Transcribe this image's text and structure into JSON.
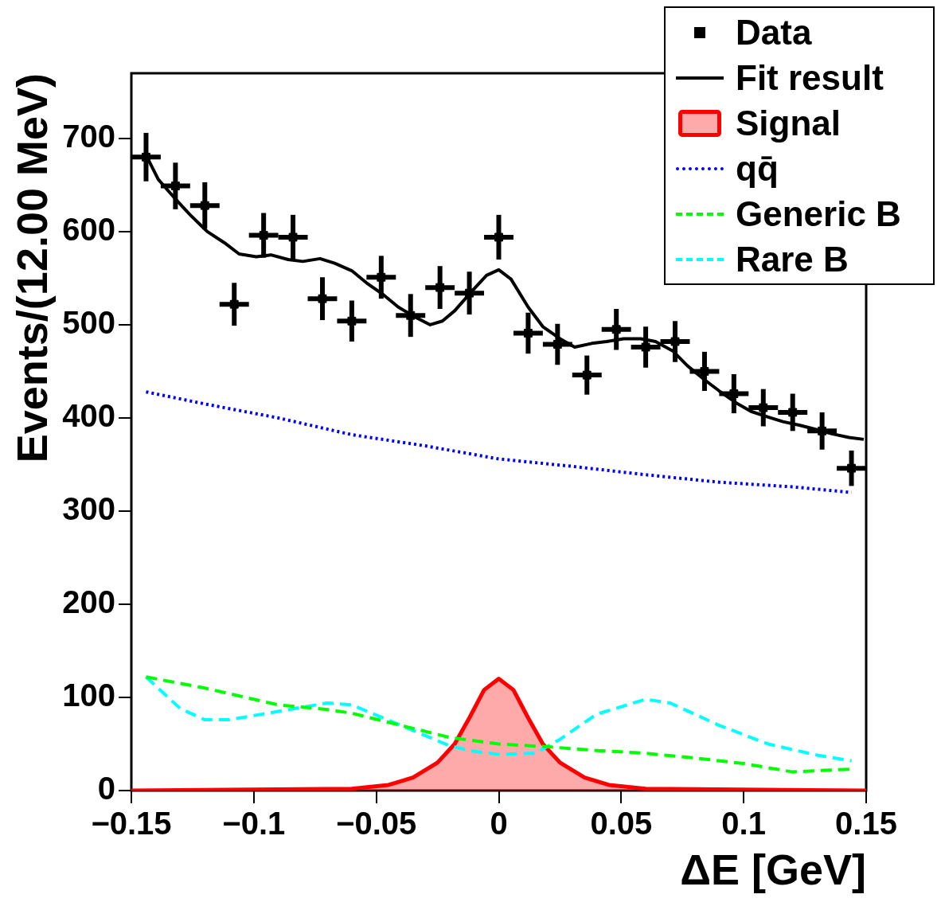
{
  "chart_data": {
    "type": "line",
    "xlabel": "ΔE [GeV]",
    "ylabel": "Events/(12.00 MeV)",
    "xlim": [
      -0.15,
      0.15
    ],
    "ylim": [
      0,
      770
    ],
    "xticks": [
      {
        "value": -0.15,
        "label": "−0.15"
      },
      {
        "value": -0.1,
        "label": "−0.1"
      },
      {
        "value": -0.05,
        "label": "−0.05"
      },
      0,
      0.05,
      0.1,
      0.15
    ],
    "yticks": [
      0,
      100,
      200,
      300,
      400,
      500,
      600,
      700
    ],
    "grid": false,
    "legend": "top right",
    "series": [
      {
        "name": "Data",
        "type": "scatter",
        "marker": "square",
        "color": "#000000",
        "x": [
          -0.144,
          -0.132,
          -0.12,
          -0.108,
          -0.096,
          -0.084,
          -0.072,
          -0.06,
          -0.048,
          -0.036,
          -0.024,
          -0.012,
          0,
          0.012,
          0.024,
          0.036,
          0.048,
          0.06,
          0.072,
          0.084,
          0.096,
          0.108,
          0.12,
          0.132,
          0.144
        ],
        "values": [
          680,
          649,
          628,
          522,
          596,
          594,
          528,
          504,
          551,
          510,
          540,
          534,
          594,
          491,
          479,
          446,
          495,
          476,
          482,
          450,
          426,
          411,
          406,
          386,
          346
        ],
        "errors": [
          26,
          25,
          25,
          23,
          24,
          24,
          23,
          22,
          23,
          23,
          23,
          23,
          24,
          22,
          22,
          21,
          22,
          22,
          22,
          21,
          21,
          20,
          20,
          20,
          19
        ],
        "xerrors": [
          0.006,
          0.006,
          0.006,
          0.006,
          0.006,
          0.006,
          0.006,
          0.006,
          0.006,
          0.006,
          0.006,
          0.006,
          0.006,
          0.006,
          0.006,
          0.006,
          0.006,
          0.006,
          0.006,
          0.006,
          0.006,
          0.006,
          0.006,
          0.006,
          0.006
        ]
      },
      {
        "name": "Fit result",
        "type": "line",
        "line_style": "solid",
        "color": "#000000",
        "x": [
          -0.144,
          -0.139,
          -0.132,
          -0.126,
          -0.119,
          -0.112,
          -0.106,
          -0.099,
          -0.093,
          -0.086,
          -0.08,
          -0.073,
          -0.067,
          -0.06,
          -0.054,
          -0.047,
          -0.041,
          -0.034,
          -0.028,
          -0.023,
          -0.018,
          -0.011,
          -0.005,
          0,
          0.005,
          0.012,
          0.018,
          0.025,
          0.031,
          0.038,
          0.044,
          0.051,
          0.058,
          0.064,
          0.071,
          0.077,
          0.084,
          0.09,
          0.097,
          0.103,
          0.11,
          0.116,
          0.123,
          0.129,
          0.136,
          0.143,
          0.149
        ],
        "values": [
          682,
          656,
          635,
          618,
          600,
          588,
          576,
          573,
          575,
          570,
          568,
          571,
          566,
          558,
          545,
          532,
          519,
          508,
          500,
          504,
          515,
          536,
          553,
          559,
          549,
          519,
          498,
          485,
          476,
          480,
          482,
          485,
          485,
          482,
          472,
          456,
          441,
          429,
          416,
          407,
          401,
          396,
          392,
          388,
          383,
          379,
          377
        ]
      },
      {
        "name": "Signal",
        "type": "area",
        "color": "#ff0000",
        "x": [
          -0.15,
          -0.06,
          -0.045,
          -0.035,
          -0.025,
          -0.018,
          -0.012,
          -0.006,
          0,
          0.006,
          0.012,
          0.018,
          0.025,
          0.035,
          0.045,
          0.06,
          0.15
        ],
        "values": [
          0,
          2,
          6,
          14,
          30,
          50,
          78,
          108,
          120,
          108,
          78,
          50,
          30,
          14,
          6,
          2,
          0
        ]
      },
      {
        "name": "qq̄",
        "type": "line",
        "line_style": "dotted",
        "color": "#0000ff",
        "x": [
          -0.144,
          -0.12,
          -0.09,
          -0.06,
          -0.03,
          0,
          0.03,
          0.06,
          0.09,
          0.12,
          0.144
        ],
        "values": [
          428,
          415,
          400,
          382,
          370,
          356,
          348,
          339,
          331,
          326,
          320
        ]
      },
      {
        "name": "Generic B",
        "type": "line",
        "line_style": "dashed",
        "color": "#00ff00",
        "x": [
          -0.144,
          -0.12,
          -0.09,
          -0.07,
          -0.06,
          -0.04,
          -0.02,
          0,
          0.02,
          0.04,
          0.06,
          0.08,
          0.1,
          0.12,
          0.135,
          0.144
        ],
        "values": [
          122,
          110,
          92,
          87,
          83,
          70,
          57,
          50,
          47,
          43,
          40,
          35,
          29,
          20,
          22,
          23
        ]
      },
      {
        "name": "Rare B",
        "type": "line",
        "line_style": "dashed",
        "color": "#00ffff",
        "x": [
          -0.144,
          -0.13,
          -0.12,
          -0.11,
          -0.09,
          -0.07,
          -0.06,
          -0.04,
          -0.02,
          -0.01,
          0,
          0.015,
          0.025,
          0.04,
          0.06,
          0.07,
          0.09,
          0.11,
          0.13,
          0.144
        ],
        "values": [
          122,
          88,
          76,
          76,
          85,
          94,
          92,
          70,
          48,
          42,
          39,
          40,
          55,
          82,
          98,
          94,
          70,
          50,
          38,
          32
        ]
      }
    ]
  }
}
